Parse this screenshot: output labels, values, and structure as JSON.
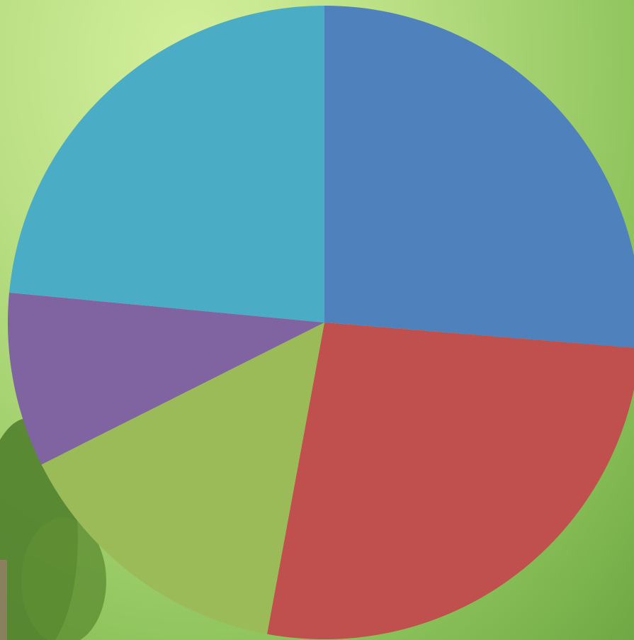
{
  "chart_data": {
    "type": "pie",
    "values": [
      26.3,
      26.6,
      14.7,
      8.9,
      23.5
    ],
    "colors": [
      "#4f81bd",
      "#c0504d",
      "#9bbb59",
      "#8064a2",
      "#4bacc6"
    ],
    "start_angle": 0
  }
}
